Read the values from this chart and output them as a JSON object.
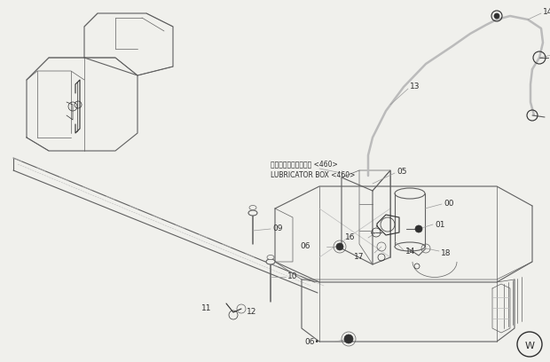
{
  "bg_color": "#f0f0ec",
  "fig_width": 6.2,
  "fig_height": 4.08,
  "dpi": 100,
  "lc": "#606060",
  "dc": "#303030",
  "gray": "#999999",
  "lgray": "#bbbbbb",
  "fs": 6.5,
  "fs_sm": 5.8,
  "japanese_label": "リブリケータボックス <460>",
  "english_label": "LUBRICATOR BOX <460>"
}
